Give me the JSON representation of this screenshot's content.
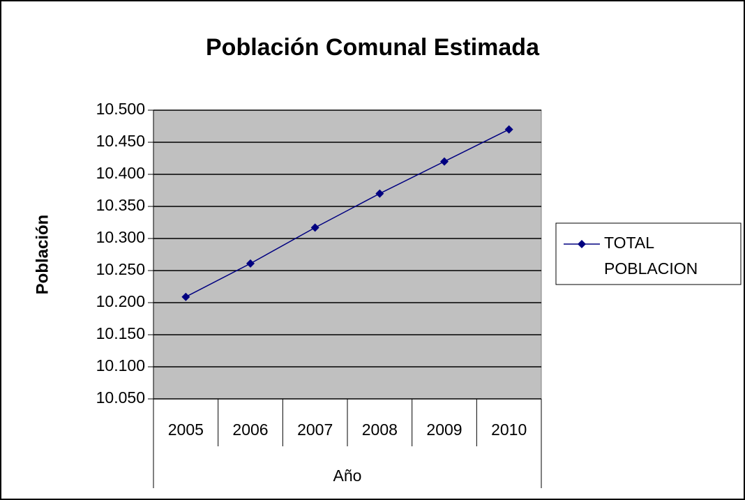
{
  "chart_data": {
    "type": "line",
    "title": "Población Comunal Estimada",
    "x_label": "Año",
    "y_label": "Población",
    "categories": [
      "2005",
      "2006",
      "2007",
      "2008",
      "2009",
      "2010"
    ],
    "series": [
      {
        "name": "TOTAL POBLACION",
        "color": "#000080",
        "values": [
          10209,
          10261,
          10317,
          10370,
          10420,
          10470
        ]
      }
    ],
    "ylim": [
      10050,
      10500
    ],
    "yticks": [
      {
        "value": 10050,
        "label": "10.050"
      },
      {
        "value": 10100,
        "label": "10.100"
      },
      {
        "value": 10150,
        "label": "10.150"
      },
      {
        "value": 10200,
        "label": "10.200"
      },
      {
        "value": 10250,
        "label": "10.250"
      },
      {
        "value": 10300,
        "label": "10.300"
      },
      {
        "value": 10350,
        "label": "10.350"
      },
      {
        "value": 10400,
        "label": "10.400"
      },
      {
        "value": 10450,
        "label": "10.450"
      },
      {
        "value": 10500,
        "label": "10.500"
      }
    ],
    "grid": true,
    "plot_background": "#c0c0c0",
    "legend": "right"
  }
}
